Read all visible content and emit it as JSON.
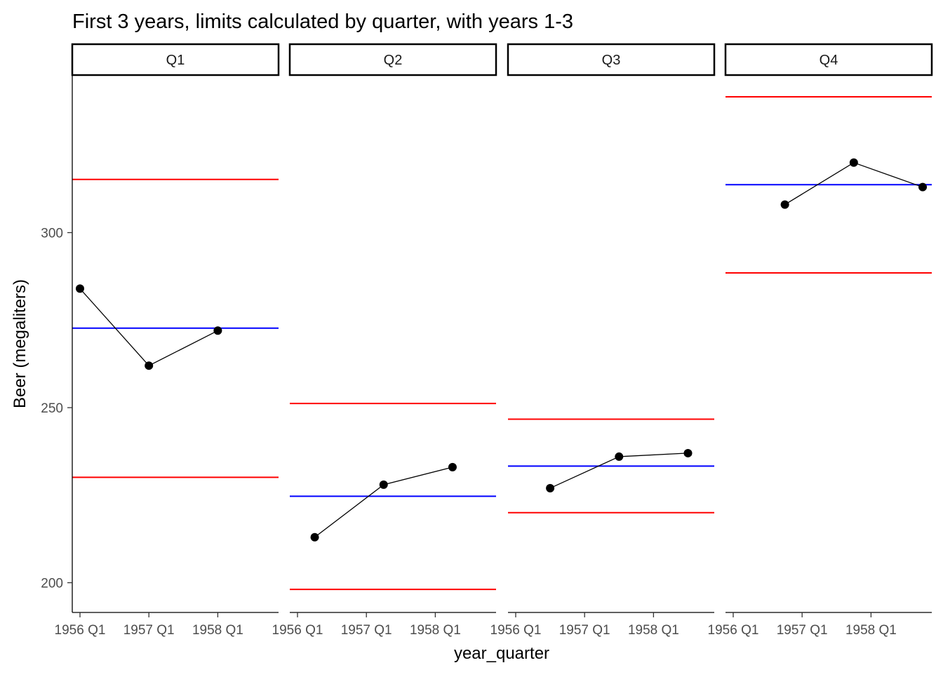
{
  "chart_data": {
    "type": "line",
    "title": "First 3 years, limits calculated by quarter, with years 1-3",
    "xlabel": "year_quarter",
    "ylabel": "Beer (megaliters)",
    "x_ticks": [
      "1956 Q1",
      "1957 Q1",
      "1958 Q1"
    ],
    "y_ticks": [
      200,
      250,
      300
    ],
    "ylim": [
      191.5,
      345
    ],
    "grid": false,
    "colors": {
      "points": "#000000",
      "line": "#000000",
      "center_line": "#0000ff",
      "limit_lines": "#ff0000"
    },
    "panels": [
      {
        "label": "Q1",
        "points": [
          {
            "x": "1956 Q1",
            "y": 284
          },
          {
            "x": "1957 Q1",
            "y": 262
          },
          {
            "x": "1958 Q1",
            "y": 272
          }
        ],
        "center": 272.7,
        "upper_limit": 315.2,
        "lower_limit": 230.1
      },
      {
        "label": "Q2",
        "points": [
          {
            "x": "1956 Q2",
            "y": 213
          },
          {
            "x": "1957 Q2",
            "y": 228
          },
          {
            "x": "1958 Q2",
            "y": 233
          }
        ],
        "center": 224.7,
        "upper_limit": 251.2,
        "lower_limit": 198.1
      },
      {
        "label": "Q3",
        "points": [
          {
            "x": "1956 Q3",
            "y": 227
          },
          {
            "x": "1957 Q3",
            "y": 236
          },
          {
            "x": "1958 Q3",
            "y": 237
          }
        ],
        "center": 233.3,
        "upper_limit": 246.7,
        "lower_limit": 220.0
      },
      {
        "label": "Q4",
        "points": [
          {
            "x": "1956 Q4",
            "y": 308
          },
          {
            "x": "1957 Q4",
            "y": 320
          },
          {
            "x": "1958 Q4",
            "y": 313
          }
        ],
        "center": 313.7,
        "upper_limit": 338.8,
        "lower_limit": 288.5
      }
    ]
  }
}
